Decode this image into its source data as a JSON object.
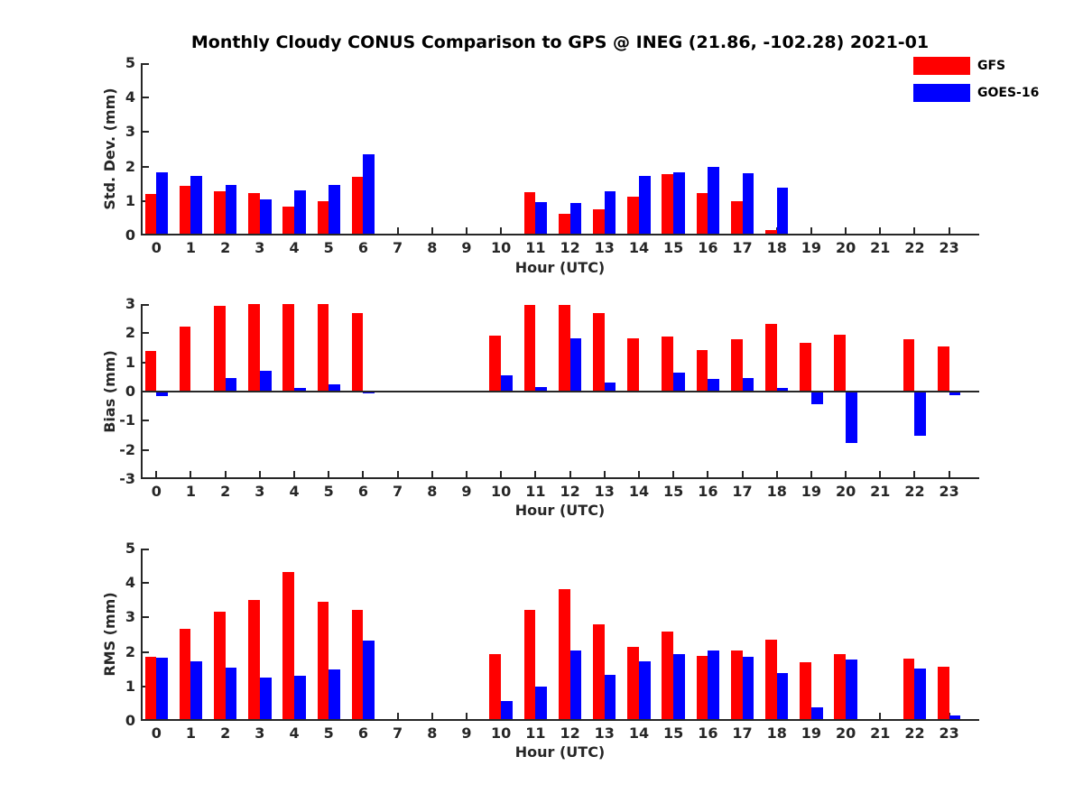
{
  "title": "Monthly Cloudy CONUS Comparison to GPS @ INEG (21.86, -102.28) 2021-01",
  "xlabel": "Hour (UTC)",
  "hours": [
    "0",
    "1",
    "2",
    "3",
    "4",
    "5",
    "6",
    "7",
    "8",
    "9",
    "10",
    "11",
    "12",
    "13",
    "14",
    "15",
    "16",
    "17",
    "18",
    "19",
    "20",
    "21",
    "22",
    "23"
  ],
  "legend": {
    "items": [
      {
        "label": "GFS",
        "color": "#ff0000"
      },
      {
        "label": "GOES-16",
        "color": "#0000ff"
      }
    ]
  },
  "colors": {
    "gfs": "#ff0000",
    "goes16": "#0000ff",
    "axis": "#262626"
  },
  "chart_data": [
    {
      "type": "bar",
      "panel": "std_dev",
      "ylabel": "Std. Dev. (mm)",
      "ylim": [
        0,
        5
      ],
      "yticks": [
        0,
        1,
        2,
        3,
        4,
        5
      ],
      "zero_line": false,
      "categories": [
        0,
        1,
        2,
        3,
        4,
        5,
        6,
        7,
        8,
        9,
        10,
        11,
        12,
        13,
        14,
        15,
        16,
        17,
        18,
        19,
        20,
        21,
        22,
        23
      ],
      "series": [
        {
          "name": "GFS",
          "color": "#ff0000",
          "values": [
            1.2,
            1.43,
            1.27,
            1.24,
            0.84,
            1.0,
            1.7,
            null,
            null,
            null,
            null,
            1.25,
            0.62,
            0.76,
            1.13,
            1.78,
            1.23,
            1.0,
            0.17,
            null,
            null,
            null,
            null,
            null
          ]
        },
        {
          "name": "GOES-16",
          "color": "#0000ff",
          "values": [
            1.82,
            1.73,
            1.47,
            1.05,
            1.32,
            1.47,
            2.35,
            null,
            null,
            null,
            null,
            0.98,
            0.95,
            1.29,
            1.74,
            1.83,
            1.98,
            1.81,
            1.4,
            null,
            null,
            null,
            null,
            null
          ]
        }
      ]
    },
    {
      "type": "bar",
      "panel": "bias",
      "ylabel": "Bias (mm)",
      "ylim": [
        -3,
        3
      ],
      "yticks": [
        -3,
        -2,
        -1,
        0,
        1,
        2,
        3
      ],
      "zero_line": true,
      "categories": [
        0,
        1,
        2,
        3,
        4,
        5,
        6,
        7,
        8,
        9,
        10,
        11,
        12,
        13,
        14,
        15,
        16,
        17,
        18,
        19,
        20,
        21,
        22,
        23
      ],
      "series": [
        {
          "name": "GFS",
          "color": "#ff0000",
          "values": [
            1.4,
            2.23,
            2.93,
            3.0,
            3.0,
            3.0,
            2.7,
            null,
            null,
            null,
            1.93,
            2.97,
            2.98,
            2.69,
            1.81,
            1.89,
            1.43,
            1.8,
            2.33,
            1.66,
            1.95,
            null,
            1.8,
            1.55
          ]
        },
        {
          "name": "GOES-16",
          "color": "#0000ff",
          "values": [
            -0.17,
            -0.04,
            0.46,
            0.7,
            0.12,
            0.26,
            -0.05,
            null,
            null,
            null,
            0.55,
            0.17,
            1.81,
            0.31,
            -0.04,
            0.64,
            0.43,
            0.46,
            0.12,
            -0.42,
            -1.75,
            null,
            -1.52,
            -0.13
          ]
        }
      ]
    },
    {
      "type": "bar",
      "panel": "rms",
      "ylabel": "RMS (mm)",
      "ylim": [
        0,
        5
      ],
      "yticks": [
        0,
        1,
        2,
        3,
        4,
        5
      ],
      "zero_line": false,
      "categories": [
        0,
        1,
        2,
        3,
        4,
        5,
        6,
        7,
        8,
        9,
        10,
        11,
        12,
        13,
        14,
        15,
        16,
        17,
        18,
        19,
        20,
        21,
        22,
        23
      ],
      "series": [
        {
          "name": "GFS",
          "color": "#ff0000",
          "values": [
            1.87,
            2.66,
            3.18,
            3.51,
            4.32,
            3.45,
            3.21,
            null,
            null,
            null,
            1.93,
            3.23,
            3.82,
            2.8,
            2.14,
            2.6,
            1.89,
            2.05,
            2.35,
            1.69,
            1.93,
            null,
            1.8,
            1.56
          ]
        },
        {
          "name": "GOES-16",
          "color": "#0000ff",
          "values": [
            1.83,
            1.73,
            1.55,
            1.25,
            1.3,
            1.5,
            2.33,
            null,
            null,
            null,
            0.57,
            0.99,
            2.05,
            1.33,
            1.73,
            1.93,
            2.04,
            1.86,
            1.4,
            0.38,
            1.77,
            null,
            1.52,
            0.15
          ]
        }
      ]
    }
  ]
}
